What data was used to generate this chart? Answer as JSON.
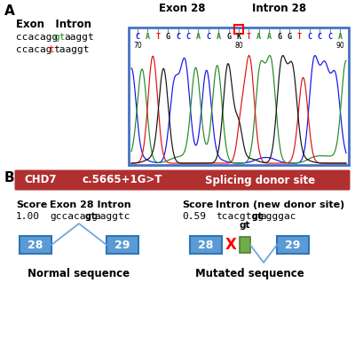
{
  "panel_a_label": "A",
  "panel_b_label": "B",
  "exon_intron_header": "Exon   Intron",
  "seq_line1_prefix": "ccacagg",
  "seq_line1_gt": "gt",
  "seq_line1_suffix": "aaggt",
  "seq_line2_prefix": "ccacag",
  "seq_line2_t": "t",
  "seq_line2_t_color": "#ff0000",
  "seq_line2_suffix": "taaggt",
  "exon28_label": "Exon 28",
  "intron28_label": "Intron 28",
  "chromatogram_seq": "CATGCCACAGKTAAGGTCCCA",
  "chromatogram_border_color": "#4472c4",
  "banner_color": "#b03030",
  "banner_text_chd7": "CHD7",
  "banner_text_variant": "c.5665+1G>T",
  "banner_text_site": "Splicing donor site",
  "score_label": "Score",
  "exon28intron_label": "Exon 28 Intron",
  "score1_val": "1.00",
  "seq1_pre": "gccacagg",
  "seq1_bold": "gt",
  "seq1_suf": "aaggtc",
  "intron_new_label": "Intron (new donor site)",
  "score2_val": "0.59",
  "seq2_pre": "tcacgtgg",
  "seq2_bold": "gt",
  "seq2_suf": "agggac",
  "gt_label": "gt",
  "exon_box_color": "#5b9bd5",
  "exon_box_border": "#2e75b6",
  "exon28_num": "28",
  "exon29_num": "29",
  "intron_new_color": "#70ad47",
  "intron_new_border": "#507e32",
  "normal_seq_label": "Normal sequence",
  "mutated_seq_label": "Mutated sequence",
  "x_mark_color": "#ff0000",
  "background_color": "#ffffff",
  "line_color": "#6fa8dc"
}
